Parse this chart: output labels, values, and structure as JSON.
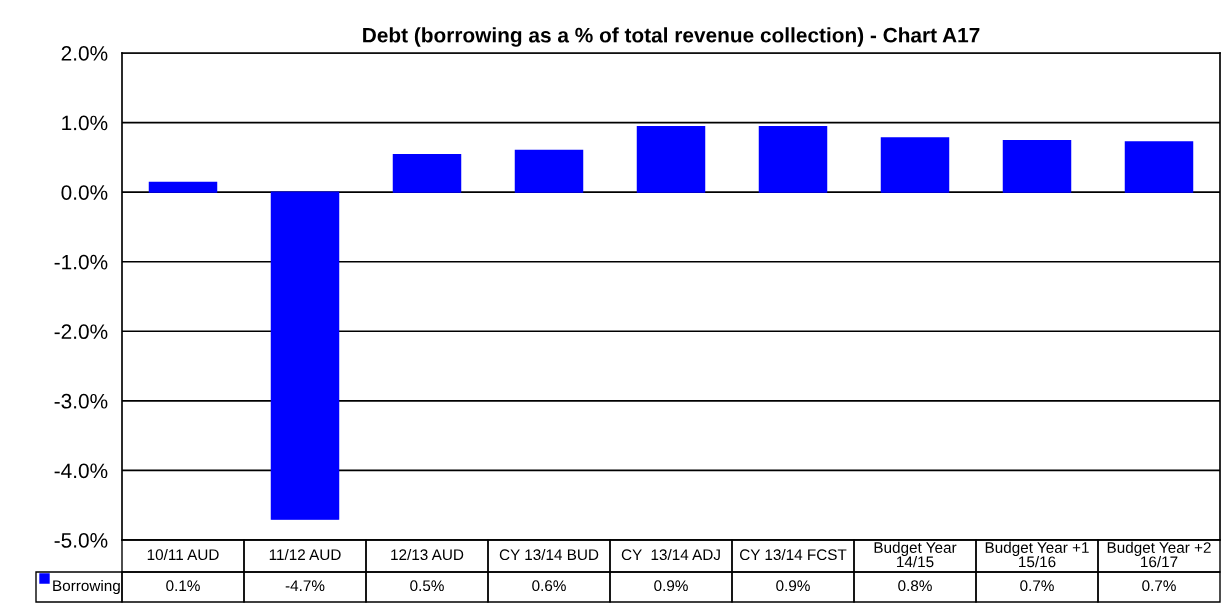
{
  "chart_data": {
    "type": "bar",
    "title": "Debt (borrowing as a % of total revenue collection) - Chart A17",
    "categories": [
      "10/11 AUD",
      "11/12 AUD",
      "12/13 AUD",
      "CY 13/14 BUD",
      "CY  13/14 ADJ",
      "CY 13/14 FCST",
      "Budget Year\n14/15",
      "Budget Year +1\n15/16",
      "Budget Year +2\n16/17"
    ],
    "series": [
      {
        "name": "Borrowing",
        "color": "#0000ff",
        "values": [
          0.14,
          -4.7,
          0.54,
          0.6,
          0.94,
          0.94,
          0.78,
          0.74,
          0.72
        ],
        "value_labels": [
          "0.1%",
          "-4.7%",
          "0.5%",
          "0.6%",
          "0.9%",
          "0.9%",
          "0.8%",
          "0.7%",
          "0.7%"
        ]
      }
    ],
    "ylim": [
      -5,
      2
    ],
    "yticks": [
      {
        "value": -5,
        "label": "-5.0%"
      },
      {
        "value": -4,
        "label": "-4.0%"
      },
      {
        "value": -3,
        "label": "-3.0%"
      },
      {
        "value": -2,
        "label": "-2.0%"
      },
      {
        "value": -1,
        "label": "-1.0%"
      },
      {
        "value": 0,
        "label": "0.0%"
      },
      {
        "value": 1,
        "label": "1.0%"
      },
      {
        "value": 2,
        "label": "2.0%"
      }
    ],
    "grid": "y"
  }
}
